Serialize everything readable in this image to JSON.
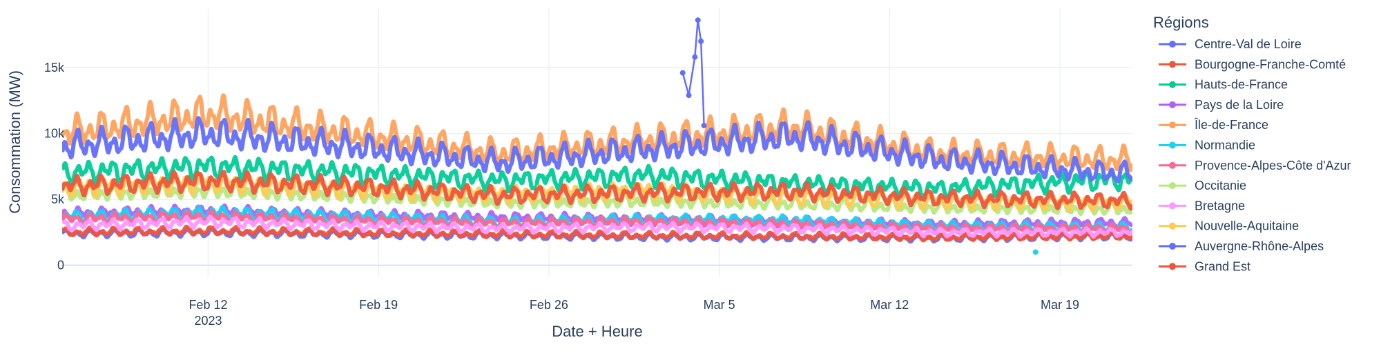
{
  "chart_data": {
    "type": "line",
    "xlabel": "Date + Heure",
    "ylabel": "Consommation (MW)",
    "x_range": [
      "2023-02-06T00:00",
      "2023-03-21T23:30"
    ],
    "ylim": [
      -800,
      19500
    ],
    "x_ticks": [
      {
        "date": "2023-02-12",
        "label": "Feb 12",
        "sublabel": "2023"
      },
      {
        "date": "2023-02-19",
        "label": "Feb 19",
        "sublabel": ""
      },
      {
        "date": "2023-02-26",
        "label": "Feb 26",
        "sublabel": ""
      },
      {
        "date": "2023-03-05",
        "label": "Mar 5",
        "sublabel": ""
      },
      {
        "date": "2023-03-12",
        "label": "Mar 12",
        "sublabel": ""
      },
      {
        "date": "2023-03-19",
        "label": "Mar 19",
        "sublabel": ""
      }
    ],
    "y_ticks": [
      {
        "value": 0,
        "label": "0"
      },
      {
        "value": 5000,
        "label": "5k"
      },
      {
        "value": 10000,
        "label": "10k"
      },
      {
        "value": 15000,
        "label": "15k"
      }
    ],
    "grid": true,
    "legend": {
      "title": "Régions",
      "position": "right"
    },
    "series": [
      {
        "name": "Centre-Val de Loire",
        "color": "#636efa",
        "values": [
          2400,
          2500,
          2350,
          2250,
          2150,
          2100,
          2050,
          2200
        ]
      },
      {
        "name": "Bourgogne-Franche-Comté",
        "color": "#EF553B",
        "values": [
          2500,
          2600,
          2450,
          2350,
          2250,
          2200,
          2100,
          2200
        ]
      },
      {
        "name": "Hauts-de-France",
        "color": "#00cc96",
        "values": [
          7000,
          7500,
          7000,
          6400,
          6800,
          6200,
          5800,
          6500
        ]
      },
      {
        "name": "Pays de la Loire",
        "color": "#ab63fa",
        "values": [
          3900,
          4100,
          3800,
          3600,
          3500,
          3300,
          3100,
          3200
        ]
      },
      {
        "name": "Île-de-France",
        "color": "#FFA15A",
        "values": [
          10000,
          11500,
          10000,
          8500,
          9500,
          10500,
          8500,
          8000
        ]
      },
      {
        "name": "Normandie",
        "color": "#19d3f3",
        "values": [
          3700,
          4000,
          3700,
          3300,
          3500,
          3400,
          3000,
          2900
        ]
      },
      {
        "name": "Provence-Alpes-Côte d'Azur",
        "color": "#FF6692",
        "values": [
          3500,
          3700,
          3400,
          3200,
          3300,
          3100,
          2800,
          2800
        ]
      },
      {
        "name": "Occitanie",
        "color": "#B6E880",
        "values": [
          5400,
          5700,
          5300,
          4800,
          4900,
          4700,
          4400,
          4300
        ]
      },
      {
        "name": "Bretagne",
        "color": "#FF97FF",
        "values": [
          3000,
          3300,
          3000,
          2800,
          2900,
          2800,
          2500,
          2500
        ]
      },
      {
        "name": "Nouvelle-Aquitaine",
        "color": "#FECB52",
        "values": [
          5900,
          6300,
          5800,
          5400,
          5700,
          5200,
          4900,
          4800
        ]
      },
      {
        "name": "Auvergne-Rhône-Alpes",
        "color": "#636efa",
        "values": [
          9000,
          10000,
          9000,
          7800,
          8800,
          9800,
          8000,
          7000
        ]
      },
      {
        "name": "Grand Est",
        "color": "#EF553B",
        "values": [
          6000,
          6400,
          6000,
          5300,
          5500,
          5600,
          5100,
          4900
        ]
      }
    ],
    "series_x_dates": [
      "2023-02-06",
      "2023-02-12",
      "2023-02-18",
      "2023-02-24",
      "2023-03-02",
      "2023-03-08",
      "2023-03-14",
      "2023-03-21"
    ],
    "highlights": [
      {
        "series": "Auvergne-Rhône-Alpes",
        "x": [
          "2023-03-03T12:00",
          "2023-03-03T18:00",
          "2023-03-04T00:00",
          "2023-03-04T03:00",
          "2023-03-04T06:00",
          "2023-03-04T09:00"
        ],
        "y": [
          14600,
          12900,
          15800,
          18600,
          17000,
          10600
        ]
      },
      {
        "series": "Normandie",
        "x": [
          "2023-03-18T00:00"
        ],
        "y": [
          1000
        ]
      }
    ]
  }
}
